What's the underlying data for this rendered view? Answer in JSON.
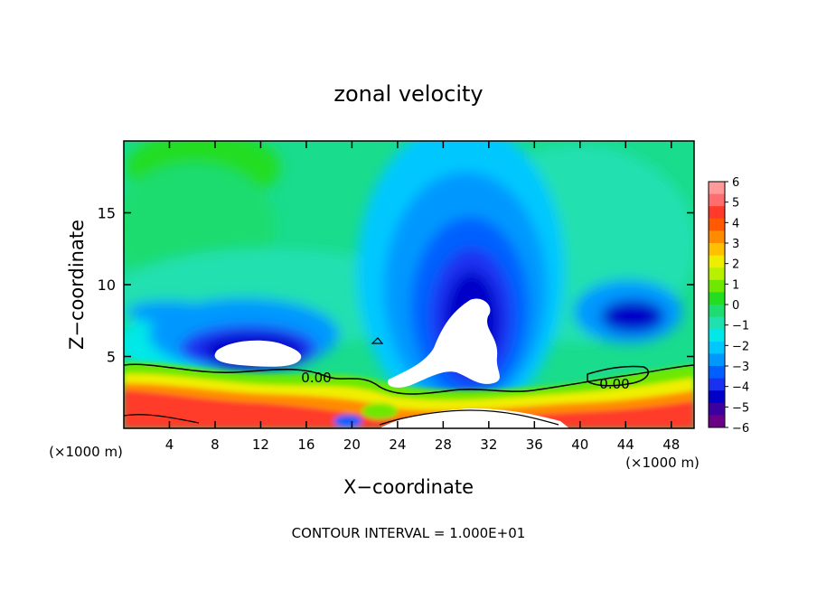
{
  "chart_data": {
    "type": "heatmap",
    "title": "zonal velocity",
    "xlabel": "X−coordinate",
    "ylabel": "Z−coordinate",
    "x_unit_left": "(×1000 m)",
    "x_unit_right": "(×1000 m)",
    "footer": "CONTOUR INTERVAL = 1.000E+01",
    "xlim": [
      0,
      50
    ],
    "ylim": [
      0,
      20
    ],
    "x_ticks": [
      4,
      8,
      12,
      16,
      20,
      24,
      28,
      32,
      36,
      40,
      44,
      48
    ],
    "y_ticks": [
      5,
      10,
      15
    ],
    "colorbar": {
      "range": [
        -6,
        6
      ],
      "tick_labels": [
        "6",
        "5",
        "4",
        "3",
        "2",
        "1",
        "0",
        "−1",
        "−2",
        "−3",
        "−4",
        "−5",
        "−6"
      ],
      "colors": [
        "#ff9a9a",
        "#ff6e6e",
        "#ff3a2a",
        "#ff5a00",
        "#ff8c00",
        "#ffc000",
        "#f0ee00",
        "#b8f000",
        "#6ee800",
        "#22dd22",
        "#1fdc70",
        "#20e0b0",
        "#00e8e8",
        "#00c8ff",
        "#0098ff",
        "#0060ff",
        "#1a30f0",
        "#0000c8",
        "#3c00a0",
        "#6a0088"
      ]
    },
    "contour_labels": [
      {
        "text": "0.00",
        "x": 17,
        "z": 3.4
      },
      {
        "text": "0.00",
        "x": 43,
        "z": 3.1
      }
    ],
    "features": [
      {
        "label": "strong easterly jet (−5 to −6)",
        "x": 31,
        "z": 8
      },
      {
        "label": "easterly core (−5)",
        "x": 10,
        "z": 6
      },
      {
        "label": "easterly core (−4)",
        "x": 45,
        "z": 7.5
      },
      {
        "label": "westerly surface layer (+1 to +6)",
        "x": 25,
        "z": 1.5
      }
    ]
  }
}
